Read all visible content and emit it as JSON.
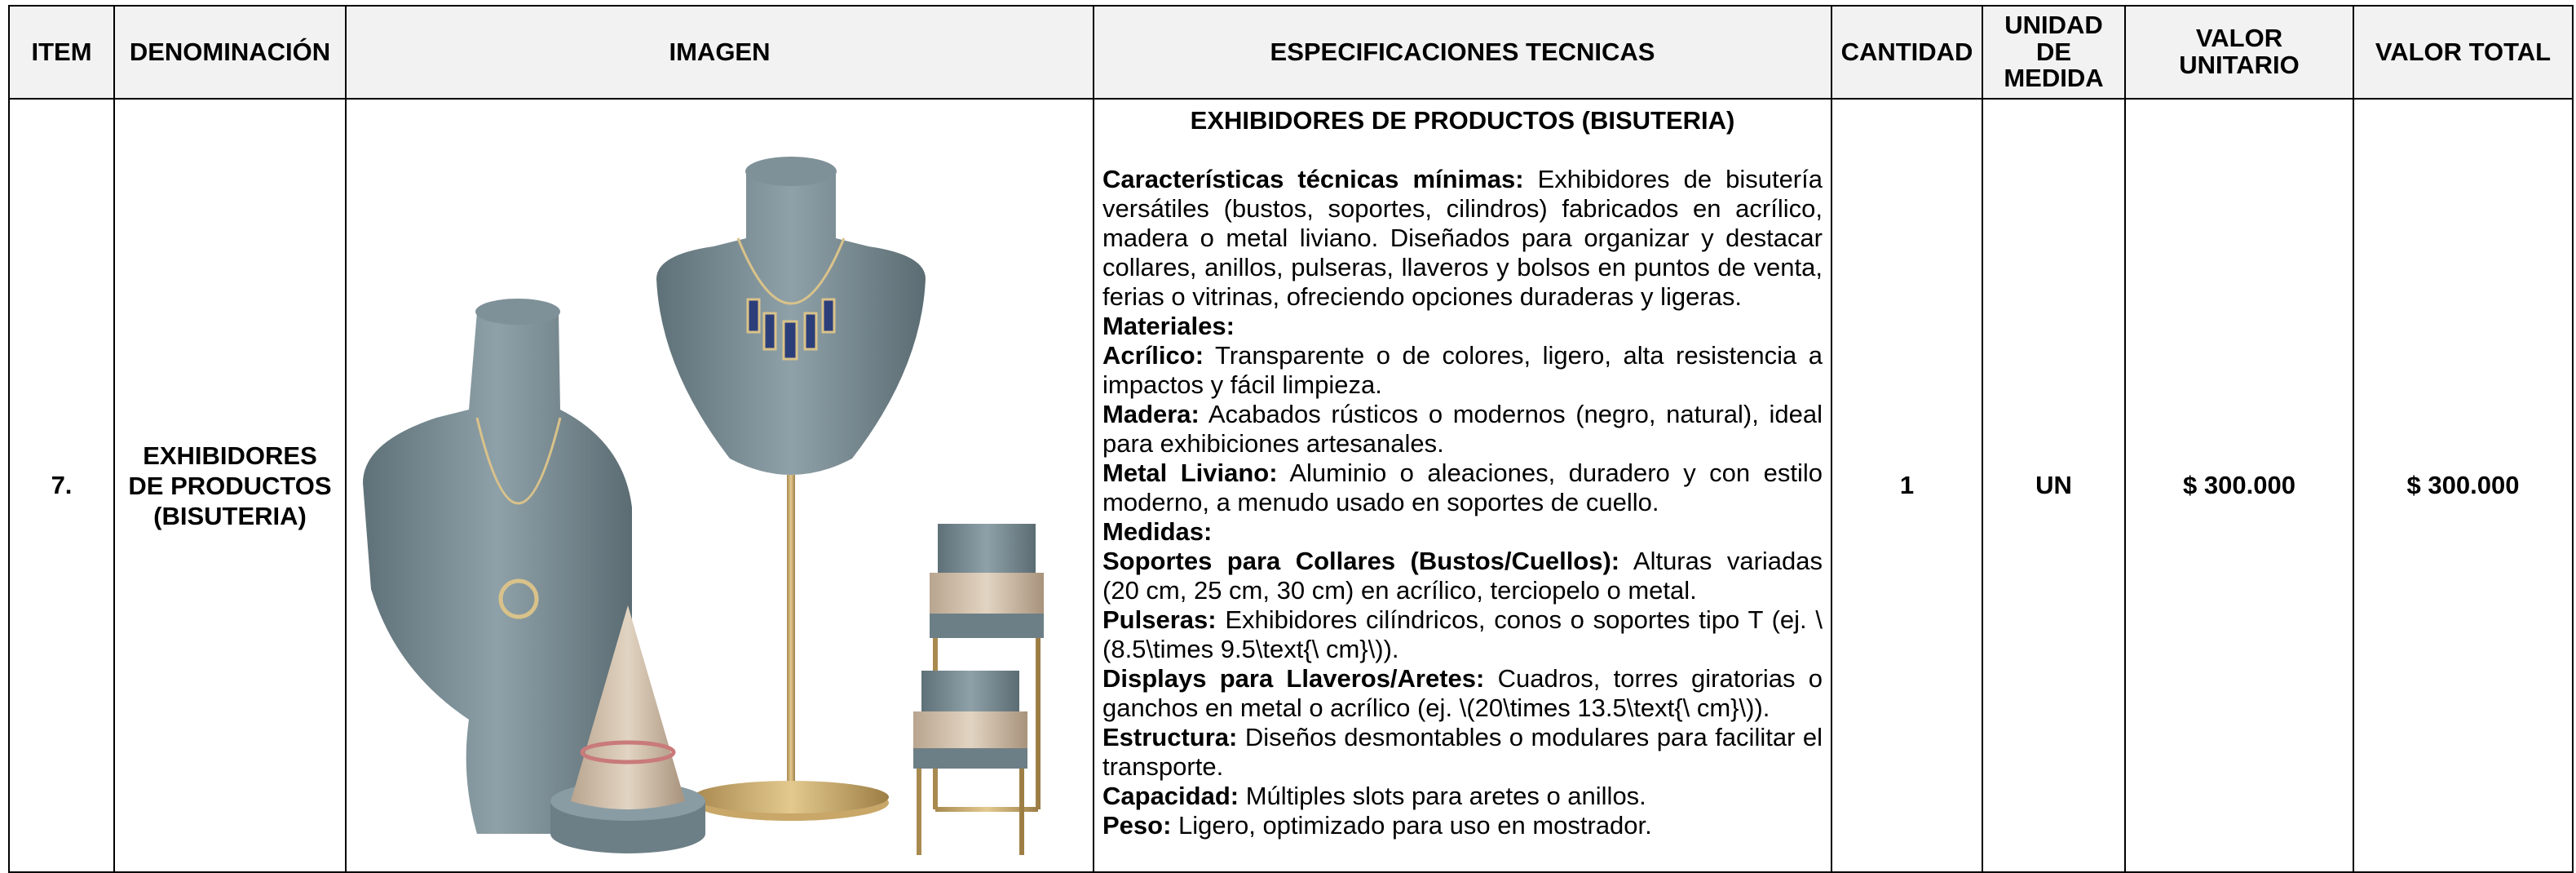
{
  "table": {
    "headers": [
      "ITEM",
      "DENOMINACIÓN",
      "IMAGEN",
      "ESPECIFICACIONES TECNICAS",
      "CANTIDAD",
      "UNIDAD DE MEDIDA",
      "VALOR UNITARIO",
      "VALOR TOTAL"
    ],
    "row": {
      "item": "7.",
      "denominacion": "EXHIBIDORES DE PRODUCTOS (BISUTERIA)",
      "specs": {
        "title": "EXHIBIDORES DE PRODUCTOS (BISUTERIA)",
        "items": [
          {
            "label": "Características técnicas mínimas:",
            "text": "Exhibidores de bisutería versátiles (bustos, soportes, cilindros) fabricados en acrílico, madera o metal liviano. Diseñados para organizar y destacar collares, anillos, pulseras, llaveros y bolsos en puntos de venta, ferias o vitrinas, ofreciendo opciones duraderas y ligeras."
          },
          {
            "label": "Materiales:"
          },
          {
            "label": "Acrílico:",
            "text": "Transparente o de colores, ligero, alta resistencia a impactos y fácil limpieza."
          },
          {
            "label": "Madera:",
            "text": "Acabados rústicos o modernos (negro, natural), ideal para exhibiciones artesanales."
          },
          {
            "label": "Metal Liviano:",
            "text": "Aluminio o aleaciones, duradero y con estilo moderno, a menudo usado en soportes de cuello."
          },
          {
            "label": "Medidas:"
          },
          {
            "label": "Soportes para Collares (Bustos/Cuellos):",
            "text": "Alturas variadas (20 cm, 25 cm, 30 cm) en acrílico, terciopelo o metal."
          },
          {
            "label": "Pulseras:",
            "text": "Exhibidores cilíndricos, conos o soportes tipo T (ej. \\(8.5\\times 9.5\\text{\\ cm}\\))."
          },
          {
            "label": "Displays para Llaveros/Aretes:",
            "text": "Cuadros, torres giratorias o ganchos en metal o acrílico (ej. \\(20\\times 13.5\\text{\\ cm}\\))."
          },
          {
            "label": "Estructura:",
            "text": "Diseños desmontables o modulares para facilitar el transporte."
          },
          {
            "label": "Capacidad:",
            "text": "Múltiples slots para aretes o anillos."
          },
          {
            "label": "Peso:",
            "text": "Ligero, optimizado para uso en mostrador."
          }
        ]
      },
      "cantidad": "1",
      "unidad": "UN",
      "valor_unitario": "$ 300.000",
      "valor_total": "$ 300.000"
    }
  }
}
